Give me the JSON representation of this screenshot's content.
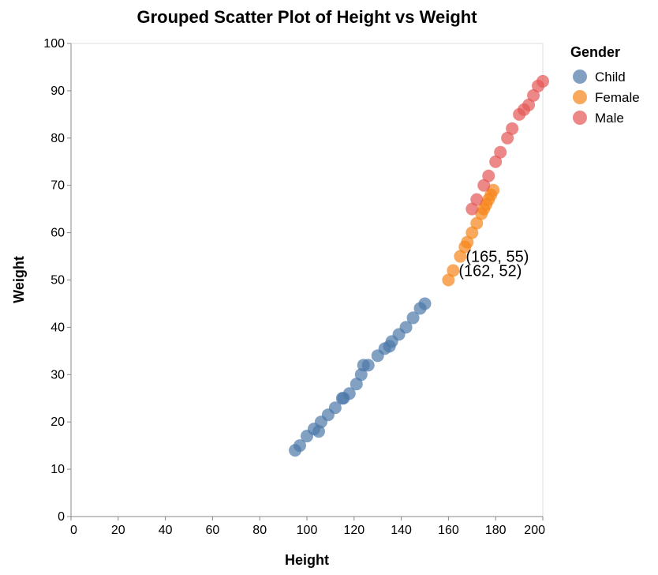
{
  "chart_data": {
    "type": "scatter",
    "title": "Grouped Scatter Plot of Height vs Weight",
    "xlabel": "Height",
    "ylabel": "Weight",
    "xlim": [
      0,
      200
    ],
    "ylim": [
      0,
      100
    ],
    "xticks": [
      0,
      20,
      40,
      60,
      80,
      100,
      120,
      140,
      160,
      180,
      200
    ],
    "yticks": [
      0,
      10,
      20,
      30,
      40,
      50,
      60,
      70,
      80,
      90,
      100
    ],
    "legend": {
      "title": "Gender",
      "placement": "right"
    },
    "grid": false,
    "series": [
      {
        "name": "Child",
        "color": "#4c78a8",
        "points": [
          {
            "x": 95,
            "y": 14
          },
          {
            "x": 97,
            "y": 15
          },
          {
            "x": 100,
            "y": 17
          },
          {
            "x": 103,
            "y": 18.5
          },
          {
            "x": 105,
            "y": 18
          },
          {
            "x": 106,
            "y": 20
          },
          {
            "x": 109,
            "y": 21.5
          },
          {
            "x": 112,
            "y": 23
          },
          {
            "x": 115,
            "y": 25
          },
          {
            "x": 115.5,
            "y": 25
          },
          {
            "x": 118,
            "y": 26
          },
          {
            "x": 121,
            "y": 28
          },
          {
            "x": 123,
            "y": 30
          },
          {
            "x": 124,
            "y": 32
          },
          {
            "x": 126,
            "y": 32
          },
          {
            "x": 130,
            "y": 34
          },
          {
            "x": 133,
            "y": 35.5
          },
          {
            "x": 135,
            "y": 36
          },
          {
            "x": 136,
            "y": 37
          },
          {
            "x": 139,
            "y": 38.5
          },
          {
            "x": 142,
            "y": 40
          },
          {
            "x": 145,
            "y": 42
          },
          {
            "x": 148,
            "y": 44
          },
          {
            "x": 150,
            "y": 45
          }
        ]
      },
      {
        "name": "Female",
        "color": "#f58518",
        "points": [
          {
            "x": 160,
            "y": 50
          },
          {
            "x": 162,
            "y": 52
          },
          {
            "x": 165,
            "y": 55
          },
          {
            "x": 167,
            "y": 57
          },
          {
            "x": 168,
            "y": 58
          },
          {
            "x": 170,
            "y": 60
          },
          {
            "x": 172,
            "y": 62
          },
          {
            "x": 174,
            "y": 64
          },
          {
            "x": 175,
            "y": 65
          },
          {
            "x": 176,
            "y": 66
          },
          {
            "x": 177,
            "y": 67
          },
          {
            "x": 178,
            "y": 68
          },
          {
            "x": 179,
            "y": 69
          }
        ]
      },
      {
        "name": "Male",
        "color": "#e45756",
        "points": [
          {
            "x": 170,
            "y": 65
          },
          {
            "x": 172,
            "y": 67
          },
          {
            "x": 175,
            "y": 70
          },
          {
            "x": 177,
            "y": 72
          },
          {
            "x": 180,
            "y": 75
          },
          {
            "x": 182,
            "y": 77
          },
          {
            "x": 185,
            "y": 80
          },
          {
            "x": 187,
            "y": 82
          },
          {
            "x": 190,
            "y": 85
          },
          {
            "x": 192,
            "y": 86
          },
          {
            "x": 194,
            "y": 87
          },
          {
            "x": 196,
            "y": 89
          },
          {
            "x": 198,
            "y": 91
          },
          {
            "x": 200,
            "y": 92
          }
        ]
      }
    ],
    "annotations": [
      {
        "text": "(165, 55)",
        "x": 165,
        "y": 55
      },
      {
        "text": "(162, 52)",
        "x": 162,
        "y": 52
      }
    ]
  }
}
